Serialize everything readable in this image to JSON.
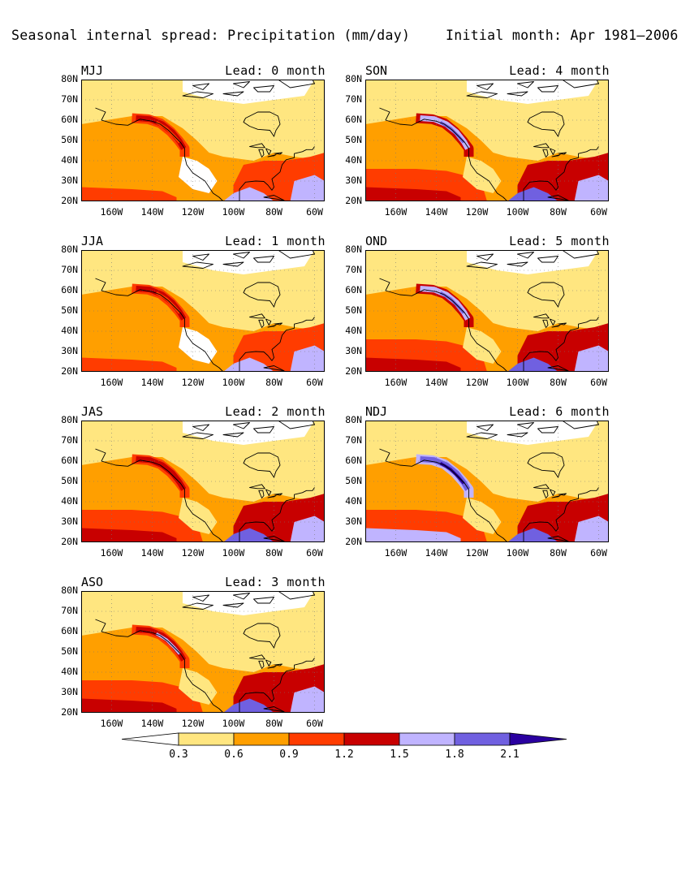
{
  "title": {
    "left": "Seasonal internal spread: Precipitation (mm/day)",
    "right": "Initial month: Apr 1981–2006"
  },
  "lat_labels": [
    "80N",
    "70N",
    "60N",
    "50N",
    "40N",
    "30N",
    "20N"
  ],
  "lon_labels": [
    "160W",
    "140W",
    "120W",
    "100W",
    "80W",
    "60W"
  ],
  "panels": [
    {
      "season": "MJJ",
      "lead": "Lead: 0 month",
      "coast_level": 3,
      "spread_level": 1
    },
    {
      "season": "JJA",
      "lead": "Lead: 1 month",
      "coast_level": 3,
      "spread_level": 1
    },
    {
      "season": "JAS",
      "lead": "Lead: 2 month",
      "coast_level": 4,
      "spread_level": 2
    },
    {
      "season": "ASO",
      "lead": "Lead: 3 month",
      "coast_level": 5,
      "spread_level": 2
    },
    {
      "season": "SON",
      "lead": "Lead: 4 month",
      "coast_level": 6,
      "spread_level": 2
    },
    {
      "season": "OND",
      "lead": "Lead: 5 month",
      "coast_level": 6,
      "spread_level": 2
    },
    {
      "season": "NDJ",
      "lead": "Lead: 6 month",
      "coast_level": 7,
      "spread_level": 3
    }
  ],
  "colorbar": {
    "labels": [
      "0.3",
      "0.6",
      "0.9",
      "1.2",
      "1.5",
      "1.8",
      "2.1"
    ],
    "colors": [
      "#ffffff",
      "#ffe680",
      "#ff9f00",
      "#ff3c00",
      "#c80000",
      "#c0b4ff",
      "#7060e0",
      "#2a00a0"
    ]
  }
}
